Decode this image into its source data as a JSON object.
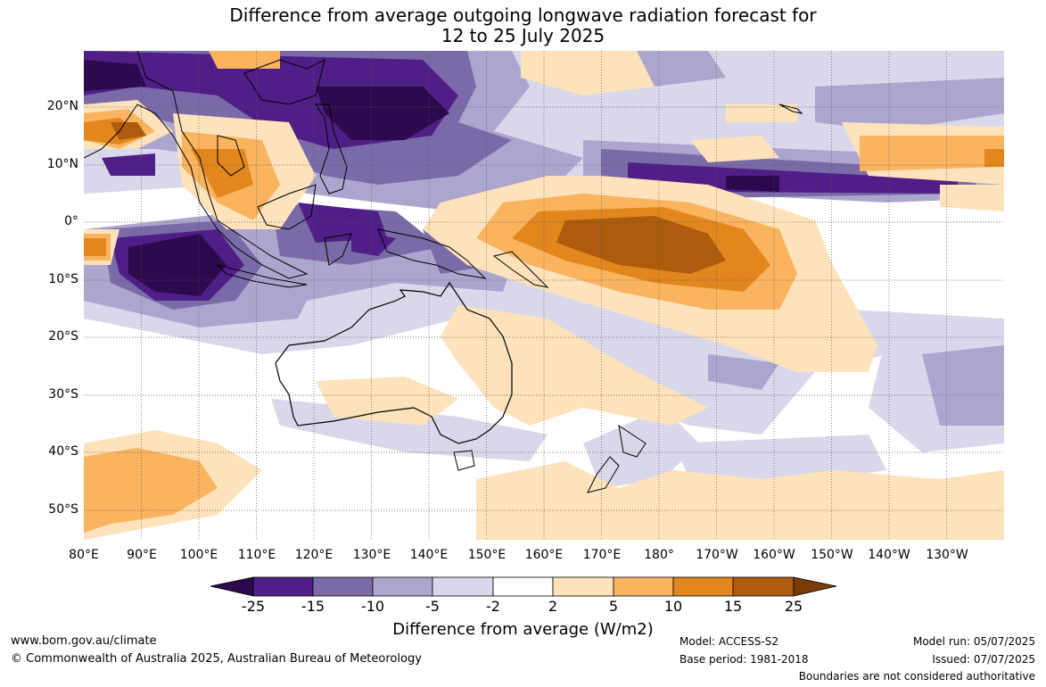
{
  "title_line1": "Difference from average outgoing longwave radiation forecast for",
  "title_line2": "12 to 25 July 2025",
  "lat_labels": [
    "20°N",
    "10°N",
    "0°",
    "10°S",
    "20°S",
    "30°S",
    "40°S",
    "50°S"
  ],
  "lon_labels": [
    "80°E",
    "90°E",
    "100°E",
    "110°E",
    "120°E",
    "130°E",
    "140°E",
    "150°E",
    "160°E",
    "170°E",
    "180°",
    "170°W",
    "160°W",
    "150°W",
    "140°W",
    "130°W"
  ],
  "colorbar": {
    "ticks": [
      "-25",
      "-15",
      "-10",
      "-5",
      "-2",
      "2",
      "5",
      "10",
      "15",
      "25"
    ],
    "colors": [
      "#2d0a4e",
      "#4f1f87",
      "#7b6aa8",
      "#aca6cf",
      "#d9d8ea",
      "#ffffff",
      "#fde2bb",
      "#fab35e",
      "#e2861e",
      "#ad5b0c",
      "#7a3c07"
    ],
    "title": "Difference from average (W/m2)"
  },
  "footer": {
    "url": "www.bom.gov.au/climate",
    "copyright": "© Commonwealth of Australia 2025, Australian Bureau of Meteorology",
    "model": "Model: ACCESS-S2",
    "base_period": "Base period: 1981-2018",
    "model_run": "Model run: 05/07/2025",
    "issued": "Issued: 07/07/2025",
    "disclaimer": "Boundaries are not considered authoritative"
  }
}
